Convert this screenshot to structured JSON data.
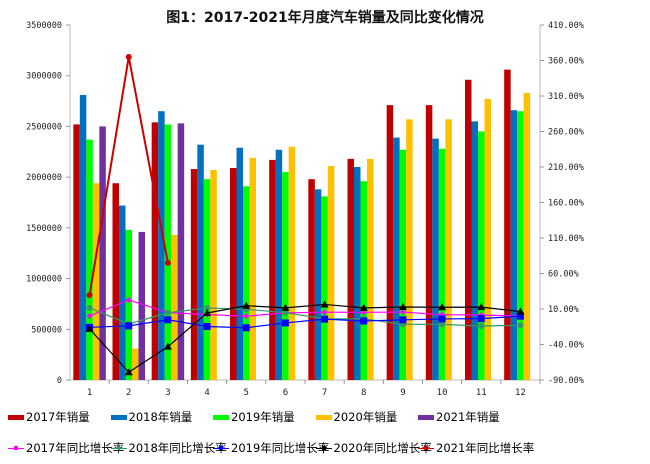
{
  "chart_data": {
    "type": "bar+line",
    "title": "图1：2017-2021年月度汽车销量及同比变化情况",
    "categories": [
      "1",
      "2",
      "3",
      "4",
      "5",
      "6",
      "7",
      "8",
      "9",
      "10",
      "11",
      "12"
    ],
    "left_axis": {
      "ylim": [
        0,
        3500000
      ],
      "ticks": [
        "0",
        "500000",
        "1000000",
        "1500000",
        "2000000",
        "2500000",
        "3000000",
        "3500000"
      ]
    },
    "right_axis": {
      "ylim": [
        -90,
        410
      ],
      "unit": "%",
      "ticks": [
        "-90.00%",
        "-40.00%",
        "10.00%",
        "60.00%",
        "110.00%",
        "160.00%",
        "210.00%",
        "260.00%",
        "310.00%",
        "360.00%",
        "410.00%"
      ]
    },
    "grid": false,
    "legend_position": "bottom",
    "bar_series": [
      {
        "name": "2017年销量",
        "color": "#C00000",
        "values": [
          2520000,
          1940000,
          2540000,
          2080000,
          2090000,
          2170000,
          1980000,
          2180000,
          2710000,
          2710000,
          2960000,
          3060000
        ]
      },
      {
        "name": "2018年销量",
        "color": "#0070C0",
        "values": [
          2810000,
          1720000,
          2650000,
          2320000,
          2290000,
          2270000,
          1880000,
          2100000,
          2390000,
          2380000,
          2550000,
          2660000
        ]
      },
      {
        "name": "2019年销量",
        "color": "#00FF00",
        "values": [
          2370000,
          1480000,
          2520000,
          1980000,
          1910000,
          2050000,
          1810000,
          1960000,
          2270000,
          2280000,
          2450000,
          2650000
        ]
      },
      {
        "name": "2020年销量",
        "color": "#FFC000",
        "values": [
          1940000,
          310000,
          1430000,
          2070000,
          2190000,
          2300000,
          2110000,
          2180000,
          2570000,
          2570000,
          2770000,
          2830000
        ]
      },
      {
        "name": "2021年销量",
        "color": "#7030A0",
        "values": [
          2500000,
          1460000,
          2530000,
          null,
          null,
          null,
          null,
          null,
          null,
          null,
          null,
          null
        ]
      }
    ],
    "line_series": [
      {
        "name": "2017年同比增长率",
        "color": "#FF00FF",
        "marker": "diamond",
        "values": [
          0.2,
          22.6,
          4.8,
          2.3,
          -0.1,
          4.5,
          5.5,
          5.3,
          5.7,
          2.0,
          1.6,
          0.0
        ]
      },
      {
        "name": "2018年同比增长率",
        "color": "#339966",
        "marker": "circle",
        "values": [
          11.6,
          -11.1,
          4.7,
          11.5,
          9.6,
          4.8,
          -4.0,
          -3.8,
          -11.6,
          -11.7,
          -13.9,
          -13.0
        ]
      },
      {
        "name": "2019年同比增长率",
        "color": "#0000FF",
        "marker": "square",
        "values": [
          -15.8,
          -13.8,
          -5.2,
          -14.6,
          -16.4,
          -9.6,
          -4.3,
          -6.9,
          -5.2,
          -4.0,
          -3.6,
          -0.1
        ]
      },
      {
        "name": "2020年同比增长率",
        "color": "#000000",
        "marker": "triangle",
        "values": [
          -18.0,
          -79.0,
          -43.0,
          4.4,
          14.6,
          11.6,
          16.4,
          11.6,
          12.8,
          12.5,
          12.6,
          6.4
        ]
      },
      {
        "name": "2021年同比增长率",
        "color": "#CC0000",
        "marker": "star",
        "values": [
          29.5,
          365.0,
          75.0,
          null,
          null,
          null,
          null,
          null,
          null,
          null,
          null,
          null
        ]
      }
    ]
  }
}
